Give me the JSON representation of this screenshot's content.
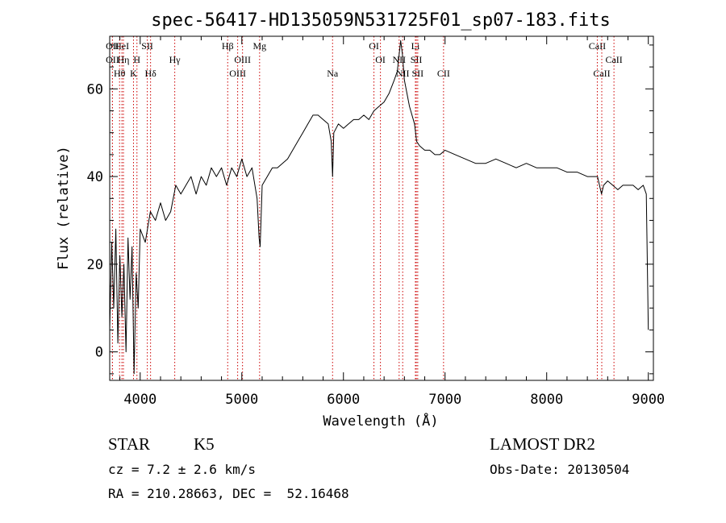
{
  "chart_data": {
    "type": "line",
    "title": "spec-56417-HD135059N531725F01_sp07-183.fits",
    "xlabel": "Wavelength (Å)",
    "ylabel": "Flux (relative)",
    "xlim": [
      3700,
      9050
    ],
    "ylim": [
      -6.5,
      72
    ],
    "x_ticks": [
      4000,
      5000,
      6000,
      7000,
      8000,
      9000
    ],
    "y_ticks": [
      0,
      20,
      40,
      60
    ],
    "grid": false,
    "series": [
      {
        "x": [
          3700,
          3720,
          3740,
          3760,
          3780,
          3800,
          3820,
          3840,
          3860,
          3880,
          3900,
          3920,
          3940,
          3960,
          3980,
          4000,
          4050,
          4100,
          4150,
          4200,
          4250,
          4300,
          4350,
          4400,
          4450,
          4500,
          4550,
          4600,
          4650,
          4700,
          4750,
          4800,
          4850,
          4900,
          4950,
          5000,
          5050,
          5100,
          5150,
          5170,
          5180,
          5200,
          5250,
          5300,
          5350,
          5400,
          5450,
          5500,
          5550,
          5600,
          5650,
          5700,
          5750,
          5800,
          5850,
          5880,
          5893,
          5905,
          5950,
          6000,
          6050,
          6100,
          6150,
          6200,
          6250,
          6300,
          6350,
          6400,
          6450,
          6500,
          6530,
          6563,
          6580,
          6600,
          6650,
          6700,
          6720,
          6750,
          6800,
          6850,
          6900,
          6950,
          7000,
          7100,
          7200,
          7300,
          7400,
          7500,
          7600,
          7700,
          7800,
          7900,
          8000,
          8100,
          8200,
          8300,
          8400,
          8500,
          8540,
          8560,
          8600,
          8650,
          8700,
          8750,
          8800,
          8850,
          8900,
          8950,
          8980,
          9000
        ],
        "y": [
          5,
          25,
          10,
          28,
          2,
          22,
          8,
          20,
          0,
          26,
          12,
          24,
          -5,
          18,
          10,
          28,
          25,
          32,
          30,
          34,
          30,
          32,
          38,
          36,
          38,
          40,
          36,
          40,
          38,
          42,
          40,
          42,
          38,
          42,
          40,
          44,
          40,
          42,
          35,
          26,
          24,
          38,
          40,
          42,
          42,
          43,
          44,
          46,
          48,
          50,
          52,
          54,
          54,
          53,
          52,
          48,
          40,
          50,
          52,
          51,
          52,
          53,
          53,
          54,
          53,
          55,
          56,
          57,
          59,
          62,
          64,
          71,
          68,
          62,
          56,
          52,
          48,
          47,
          46,
          46,
          45,
          45,
          46,
          45,
          44,
          43,
          43,
          44,
          43,
          42,
          43,
          42,
          42,
          42,
          41,
          41,
          40,
          40,
          36,
          38,
          39,
          38,
          37,
          38,
          38,
          38,
          37,
          38,
          36,
          5
        ]
      }
    ],
    "line_markers": [
      {
        "label": "OII",
        "wl": 3727,
        "row": 1
      },
      {
        "label": "HeI",
        "wl": 3820,
        "row": 1
      },
      {
        "label": "SII",
        "wl": 4070,
        "row": 1
      },
      {
        "label": "Hβ",
        "wl": 4861,
        "row": 1
      },
      {
        "label": "Mg",
        "wl": 5175,
        "row": 1
      },
      {
        "label": "OI",
        "wl": 6300,
        "row": 1
      },
      {
        "label": "Li",
        "wl": 6708,
        "row": 1
      },
      {
        "label": "CaII",
        "wl": 8498,
        "row": 1
      },
      {
        "label": "OII",
        "wl": 3727,
        "row": 2
      },
      {
        "label": "Hη",
        "wl": 3835,
        "row": 2
      },
      {
        "label": "H",
        "wl": 3968,
        "row": 2
      },
      {
        "label": "Hγ",
        "wl": 4340,
        "row": 2
      },
      {
        "label": "OIII",
        "wl": 5007,
        "row": 2
      },
      {
        "label": "OI",
        "wl": 6364,
        "row": 2
      },
      {
        "label": "NII",
        "wl": 6548,
        "row": 2
      },
      {
        "label": "SII",
        "wl": 6717,
        "row": 2
      },
      {
        "label": "CaII",
        "wl": 8662,
        "row": 2
      },
      {
        "label": "Hθ",
        "wl": 3797,
        "row": 3
      },
      {
        "label": "K",
        "wl": 3934,
        "row": 3
      },
      {
        "label": "Hδ",
        "wl": 4102,
        "row": 3
      },
      {
        "label": "OIII",
        "wl": 4959,
        "row": 3
      },
      {
        "label": "Na",
        "wl": 5893,
        "row": 3
      },
      {
        "label": "NII",
        "wl": 6583,
        "row": 3
      },
      {
        "label": "SII",
        "wl": 6731,
        "row": 3
      },
      {
        "label": "CII",
        "wl": 6985,
        "row": 3
      },
      {
        "label": "CaII",
        "wl": 8542,
        "row": 3
      }
    ]
  },
  "info": {
    "object_class": "STAR",
    "subclass": "K5",
    "survey": "LAMOST DR2",
    "redshift_line": "cz = 7.2 ± 2.6 km/s",
    "obs_date": "Obs-Date: 20130504",
    "coords": "RA = 210.28663, DEC =  52.16468"
  },
  "colors": {
    "spectrum": "#000000",
    "line_markers": "#cc0000",
    "axes": "#000000",
    "background": "#ffffff"
  }
}
